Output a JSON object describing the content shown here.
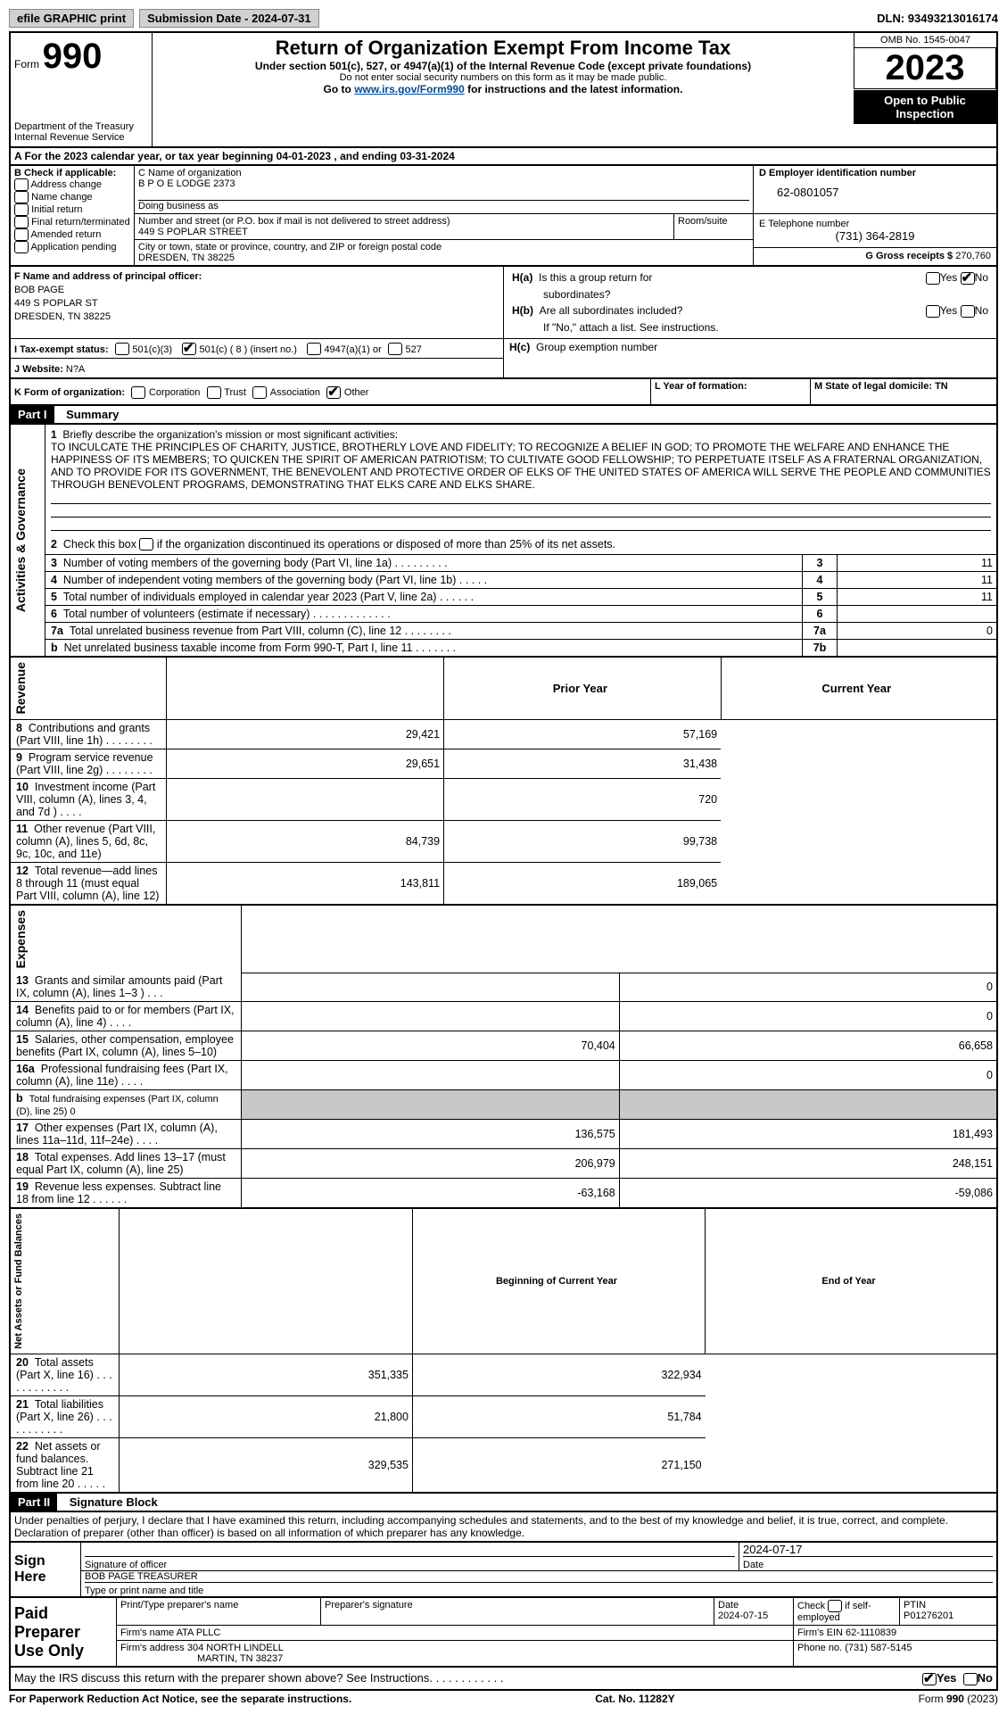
{
  "top_bar": {
    "efile_label": "efile GRAPHIC print",
    "submission_label": "Submission Date - 2024-07-31",
    "dln_label": "DLN: 93493213016174"
  },
  "header": {
    "form_small": "Form",
    "form_big": "990",
    "title": "Return of Organization Exempt From Income Tax",
    "subtitle": "Under section 501(c), 527, or 4947(a)(1) of the Internal Revenue Code (except private foundations)",
    "ssn_note": "Do not enter social security numbers on this form as it may be made public.",
    "goto_prefix": "Go to ",
    "goto_link": "www.irs.gov/Form990",
    "goto_suffix": " for instructions and the latest information.",
    "dept": "Department of the Treasury",
    "irs": "Internal Revenue Service",
    "omb": "OMB No. 1545-0047",
    "year": "2023",
    "open_public": "Open to Public Inspection"
  },
  "section_a": {
    "cal_year_prefix": "A For the 2023 calendar year, or tax year beginning ",
    "begin": "04-01-2023",
    "mid": " , and ending ",
    "end": "03-31-2024"
  },
  "section_b": {
    "label": "B Check if applicable:",
    "items": [
      "Address change",
      "Name change",
      "Initial return",
      "Final return/terminated",
      "Amended return",
      "Application pending"
    ]
  },
  "section_c": {
    "name_label": "C Name of organization",
    "name_value": "B P O E LODGE 2373",
    "dba_label": "Doing business as",
    "street_label": "Number and street (or P.O. box if mail is not delivered to street address)",
    "room_label": "Room/suite",
    "street_value": "449 S POPLAR STREET",
    "city_label": "City or town, state or province, country, and ZIP or foreign postal code",
    "city_value": "DRESDEN, TN  38225"
  },
  "section_d": {
    "label": "D Employer identification number",
    "value": "62-0801057"
  },
  "section_e": {
    "label": "E Telephone number",
    "value": "(731) 364-2819"
  },
  "section_g": {
    "label": "G Gross receipts $ ",
    "value": "270,760"
  },
  "section_f": {
    "label": "F Name and address of principal officer:",
    "name": "BOB PAGE",
    "street": "449 S POPLAR ST",
    "city": "DRESDEN, TN  38225"
  },
  "section_h": {
    "a_label": "H(a)  Is this a group return for subordinates?",
    "b_label": "H(b)  Are all subordinates included?",
    "b_note": "If \"No,\" attach a list. See instructions.",
    "c_label": "H(c)  Group exemption number ",
    "yes": "Yes",
    "no": "No"
  },
  "section_i": {
    "label": "I    Tax-exempt status:",
    "opt1": "501(c)(3)",
    "opt2_pre": "501(c) ( ",
    "opt2_num": "8",
    "opt2_post": " ) (insert no.)",
    "opt3": "4947(a)(1) or",
    "opt4": "527"
  },
  "section_j": {
    "label": "J    Website:  ",
    "value": "N?A"
  },
  "section_k": {
    "label": "K Form of organization:",
    "opts": [
      "Corporation",
      "Trust",
      "Association",
      "Other"
    ]
  },
  "section_l": {
    "label": "L Year of formation:"
  },
  "section_m": {
    "label": "M State of legal domicile: TN"
  },
  "part1": {
    "header": "Part I",
    "title": "Summary",
    "line1_prefix": "1   Briefly describe the organization's mission or most significant activities:",
    "line1_text": "TO INCULCATE THE PRINCIPLES OF CHARITY, JUSTICE, BROTHERLY LOVE AND FIDELITY; TO RECOGNIZE A BELIEF IN GOD; TO PROMOTE THE WELFARE AND ENHANCE THE HAPPINESS OF ITS MEMBERS; TO QUICKEN THE SPIRIT OF AMERICAN PATRIOTISM; TO CULTIVATE GOOD FELLOWSHIP; TO PERPETUATE ITSELF AS A FRATERNAL ORGANIZATION, AND TO PROVIDE FOR ITS GOVERNMENT, THE BENEVOLENT AND PROTECTIVE ORDER OF ELKS OF THE UNITED STATES OF AMERICA WILL SERVE THE PEOPLE AND COMMUNITIES THROUGH BENEVOLENT PROGRAMS, DEMONSTRATING THAT ELKS CARE AND ELKS SHARE.",
    "line2": "2   Check this box       if the organization discontinued its operations or disposed of more than 25% of its net assets.",
    "rows_ag": [
      {
        "num": "3",
        "text": "Number of voting members of the governing body (Part VI, line 1a)  .   .   .   .   .   .   .   .   .",
        "box": "3",
        "val": "11"
      },
      {
        "num": "4",
        "text": "Number of independent voting members of the governing body (Part VI, line 1b)   .   .   .   .   .",
        "box": "4",
        "val": "11"
      },
      {
        "num": "5",
        "text": "Total number of individuals employed in calendar year 2023 (Part V, line 2a)  .   .   .   .   .   .",
        "box": "5",
        "val": "11"
      },
      {
        "num": "6",
        "text": "Total number of volunteers (estimate if necessary)   .   .   .   .   .   .   .   .   .   .   .   .   .",
        "box": "6",
        "val": ""
      },
      {
        "num": "7a",
        "text": "Total unrelated business revenue from Part VIII, column (C), line 12   .   .   .   .   .   .   .   .",
        "box": "7a",
        "val": "0"
      },
      {
        "num": "b",
        "text": "Net unrelated business taxable income from Form 990-T, Part I, line 11    .   .   .   .   .   .   .",
        "box": "7b",
        "val": ""
      }
    ],
    "prior_hdr": "Prior Year",
    "curr_hdr": "Current Year",
    "revenue_rows": [
      {
        "num": "8",
        "text": "Contributions and grants (Part VIII, line 1h)   .   .   .   .   .   .   .   .",
        "prior": "29,421",
        "curr": "57,169"
      },
      {
        "num": "9",
        "text": "Program service revenue (Part VIII, line 2g)  .   .   .   .   .   .   .   .",
        "prior": "29,651",
        "curr": "31,438"
      },
      {
        "num": "10",
        "text": "Investment income (Part VIII, column (A), lines 3, 4, and 7d )   .   .   .   .",
        "prior": "",
        "curr": "720"
      },
      {
        "num": "11",
        "text": "Other revenue (Part VIII, column (A), lines 5, 6d, 8c, 9c, 10c, and 11e)",
        "prior": "84,739",
        "curr": "99,738"
      },
      {
        "num": "12",
        "text": "Total revenue—add lines 8 through 11 (must equal Part VIII, column (A), line 12)",
        "prior": "143,811",
        "curr": "189,065"
      }
    ],
    "expense_rows": [
      {
        "num": "13",
        "text": "Grants and similar amounts paid (Part IX, column (A), lines 1–3 )   .   .   .",
        "prior": "",
        "curr": "0"
      },
      {
        "num": "14",
        "text": "Benefits paid to or for members (Part IX, column (A), line 4)  .   .   .   .",
        "prior": "",
        "curr": "0"
      },
      {
        "num": "15",
        "text": "Salaries, other compensation, employee benefits (Part IX, column (A), lines 5–10)",
        "prior": "70,404",
        "curr": "66,658"
      },
      {
        "num": "16a",
        "text": "Professional fundraising fees (Part IX, column (A), line 11e)  .   .   .   .",
        "prior": "",
        "curr": "0"
      },
      {
        "num": "b",
        "text": "Total fundraising expenses (Part IX, column (D), line 25) 0",
        "prior": "GRAY",
        "curr": "GRAY",
        "small": true
      },
      {
        "num": "17",
        "text": "Other expenses (Part IX, column (A), lines 11a–11d, 11f–24e)   .   .   .   .",
        "prior": "136,575",
        "curr": "181,493"
      },
      {
        "num": "18",
        "text": "Total expenses. Add lines 13–17 (must equal Part IX, column (A), line 25)",
        "prior": "206,979",
        "curr": "248,151"
      },
      {
        "num": "19",
        "text": "Revenue less expenses. Subtract line 18 from line 12  .   .   .   .   .   .",
        "prior": "-63,168",
        "curr": "-59,086"
      }
    ],
    "begin_hdr": "Beginning of Current Year",
    "end_hdr": "End of Year",
    "net_rows": [
      {
        "num": "20",
        "text": "Total assets (Part X, line 16)   .   .   .   .   .   .   .   .   .   .   .   .",
        "prior": "351,335",
        "curr": "322,934"
      },
      {
        "num": "21",
        "text": "Total liabilities (Part X, line 26)   .   .   .   .   .   .   .   .   .   .   .",
        "prior": "21,800",
        "curr": "51,784"
      },
      {
        "num": "22",
        "text": "Net assets or fund balances. Subtract line 21 from line 20   .   .   .   .   .",
        "prior": "329,535",
        "curr": "271,150"
      }
    ]
  },
  "part2": {
    "header": "Part II",
    "title": "Signature Block",
    "perjury": "Under penalties of perjury, I declare that I have examined this return, including accompanying schedules and statements, and to the best of my knowledge and belief, it is true, correct, and complete. Declaration of preparer (other than officer) is based on all information of which preparer has any knowledge.",
    "sign_here": "Sign Here",
    "sig_officer_label": "Signature of officer",
    "officer_name": "BOB PAGE  TREASURER",
    "print_name_label": "Type or print name and title",
    "date_label": "Date",
    "sig_date": "2024-07-17",
    "paid_label": "Paid Preparer Use Only",
    "prep_name_label": "Print/Type preparer's name",
    "prep_sig_label": "Preparer's signature",
    "prep_date_label": "Date",
    "prep_date_val": "2024-07-15",
    "check_if_label": "Check        if self-employed",
    "ptin_label": "PTIN",
    "ptin_val": "P01276201",
    "firm_name_label": "Firm's name     ",
    "firm_name_val": "ATA PLLC",
    "firm_ein_label": "Firm's EIN  ",
    "firm_ein_val": "62-1110839",
    "firm_addr_label": "Firm's address ",
    "firm_addr_val1": "304 NORTH LINDELL",
    "firm_addr_val2": "MARTIN, TN  38237",
    "phone_label": "Phone no. ",
    "phone_val": "(731) 587-5145",
    "discuss": "May the IRS discuss this return with the preparer shown above? See Instructions.   .   .   .   .   .   .   .   .   .   .   ."
  },
  "footer": {
    "left": "For Paperwork Reduction Act Notice, see the separate instructions.",
    "center": "Cat. No. 11282Y",
    "right": "Form 990 (2023)"
  },
  "side_labels": {
    "activities": "Activities & Governance",
    "revenue": "Revenue",
    "expenses": "Expenses",
    "net": "Net Assets or Fund Balances"
  }
}
